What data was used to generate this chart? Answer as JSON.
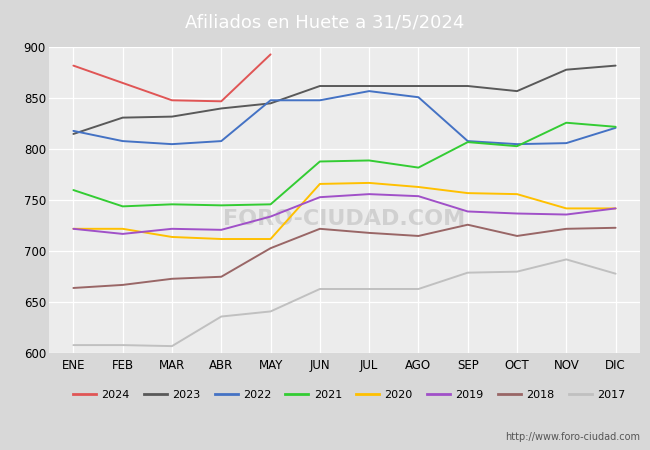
{
  "title": "Afiliados en Huete a 31/5/2024",
  "title_bg_color": "#5b9bd5",
  "title_text_color": "white",
  "ylim": [
    600,
    900
  ],
  "yticks": [
    600,
    650,
    700,
    750,
    800,
    850,
    900
  ],
  "months": [
    "ENE",
    "FEB",
    "MAR",
    "ABR",
    "MAY",
    "JUN",
    "JUL",
    "AGO",
    "SEP",
    "OCT",
    "NOV",
    "DIC"
  ],
  "series": {
    "2024": {
      "color": "#e05555",
      "data": [
        882,
        865,
        848,
        847,
        893,
        null,
        null,
        null,
        null,
        null,
        null,
        null
      ]
    },
    "2023": {
      "color": "#595959",
      "data": [
        820,
        815,
        831,
        832,
        840,
        845,
        862,
        862,
        862,
        862,
        857,
        878,
        882
      ]
    },
    "2022": {
      "color": "#4472c4",
      "data": [
        822,
        818,
        808,
        805,
        808,
        848,
        848,
        857,
        851,
        808,
        805,
        806,
        821
      ]
    },
    "2021": {
      "color": "#33cc33",
      "data": [
        742,
        760,
        744,
        746,
        745,
        746,
        788,
        789,
        782,
        807,
        803,
        826,
        822
      ]
    },
    "2020": {
      "color": "#ffc000",
      "data": [
        741,
        722,
        722,
        714,
        712,
        712,
        766,
        767,
        763,
        757,
        756,
        742,
        742
      ]
    },
    "2019": {
      "color": "#a050c8",
      "data": [
        724,
        722,
        717,
        722,
        721,
        734,
        753,
        756,
        754,
        739,
        737,
        736,
        742
      ]
    },
    "2018": {
      "color": "#996666",
      "data": [
        679,
        664,
        667,
        673,
        675,
        703,
        722,
        718,
        715,
        726,
        715,
        722,
        723
      ]
    },
    "2017": {
      "color": "#c0c0c0",
      "data": [
        619,
        608,
        608,
        607,
        636,
        641,
        663,
        663,
        663,
        679,
        680,
        692,
        678
      ]
    }
  },
  "plot_bg_color": "#ececec",
  "outer_bg_color": "#d8d8d8",
  "grid_color": "#ffffff",
  "watermark": "FORO-CIUDAD.COM",
  "footer_url": "http://www.foro-ciudad.com",
  "legend_order": [
    "2024",
    "2023",
    "2022",
    "2021",
    "2020",
    "2019",
    "2018",
    "2017"
  ]
}
